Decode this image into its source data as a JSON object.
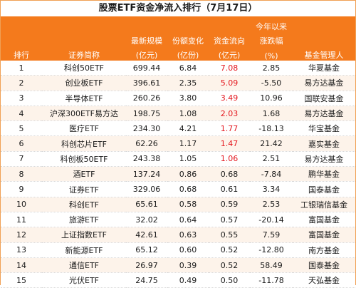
{
  "title": "股票ETF资金净流入排行（7月17日）",
  "header": {
    "rank": "排行",
    "name": "证券简称",
    "scale_line1": "最新规模",
    "scale_line2": "(亿元)",
    "share_line1": "份额变化",
    "share_line2": "(亿份)",
    "flow_line1": "资金流向",
    "flow_line2": "(亿元)",
    "ytd_line1": "今年以来",
    "ytd_line2": "涨跌幅",
    "ytd_line3": "(%)",
    "manager": "基金管理人"
  },
  "colors": {
    "header_bg": "#f47a1c",
    "header_text": "#ffffff",
    "highlight_red": "#e4161d",
    "row_alt": "#fdf3ea"
  },
  "rows": [
    {
      "rank": "1",
      "name": "科创50ETF",
      "scale": "699.44",
      "share": "6.84",
      "flow": "7.08",
      "ytd": "2.85",
      "manager": "华夏基金",
      "flow_red": true
    },
    {
      "rank": "2",
      "name": "创业板ETF",
      "scale": "396.61",
      "share": "2.35",
      "flow": "5.09",
      "ytd": "-5.50",
      "manager": "易方达基金",
      "flow_red": true
    },
    {
      "rank": "3",
      "name": "半导体ETF",
      "scale": "260.26",
      "share": "3.80",
      "flow": "3.49",
      "ytd": "10.96",
      "manager": "国联安基金",
      "flow_red": true
    },
    {
      "rank": "4",
      "name": "沪深300ETF易方达",
      "scale": "198.75",
      "share": "1.08",
      "flow": "2.03",
      "ytd": "1.68",
      "manager": "易方达基金",
      "flow_red": true
    },
    {
      "rank": "5",
      "name": "医疗ETF",
      "scale": "234.30",
      "share": "4.21",
      "flow": "1.77",
      "ytd": "-18.13",
      "manager": "华宝基金",
      "flow_red": true
    },
    {
      "rank": "6",
      "name": "科创芯片ETF",
      "scale": "62.26",
      "share": "1.17",
      "flow": "1.47",
      "ytd": "21.42",
      "manager": "嘉实基金",
      "flow_red": true
    },
    {
      "rank": "7",
      "name": "科创板50ETF",
      "scale": "243.38",
      "share": "1.05",
      "flow": "1.06",
      "ytd": "2.51",
      "manager": "易方达基金",
      "flow_red": true
    },
    {
      "rank": "8",
      "name": "酒ETF",
      "scale": "137.24",
      "share": "0.86",
      "flow": "0.68",
      "ytd": "-7.84",
      "manager": "鹏华基金",
      "flow_red": false
    },
    {
      "rank": "9",
      "name": "证券ETF",
      "scale": "329.06",
      "share": "0.68",
      "flow": "0.61",
      "ytd": "3.34",
      "manager": "国泰基金",
      "flow_red": false
    },
    {
      "rank": "10",
      "name": "科创ETF",
      "scale": "65.61",
      "share": "0.58",
      "flow": "0.59",
      "ytd": "2.53",
      "manager": "工银瑞信基金",
      "flow_red": false
    },
    {
      "rank": "11",
      "name": "旅游ETF",
      "scale": "32.02",
      "share": "0.64",
      "flow": "0.57",
      "ytd": "-20.14",
      "manager": "富国基金",
      "flow_red": false
    },
    {
      "rank": "12",
      "name": "上证指数ETF",
      "scale": "42.61",
      "share": "0.63",
      "flow": "0.55",
      "ytd": "7.59",
      "manager": "富国基金",
      "flow_red": false
    },
    {
      "rank": "13",
      "name": "新能源ETF",
      "scale": "65.12",
      "share": "0.60",
      "flow": "0.52",
      "ytd": "-12.80",
      "manager": "南方基金",
      "flow_red": false
    },
    {
      "rank": "14",
      "name": "通信ETF",
      "scale": "26.97",
      "share": "0.39",
      "flow": "0.52",
      "ytd": "58.49",
      "manager": "国泰基金",
      "flow_red": false
    },
    {
      "rank": "15",
      "name": "光伏ETF",
      "scale": "24.75",
      "share": "0.49",
      "flow": "0.50",
      "ytd": "-11.78",
      "manager": "天弘基金",
      "flow_red": false
    }
  ]
}
